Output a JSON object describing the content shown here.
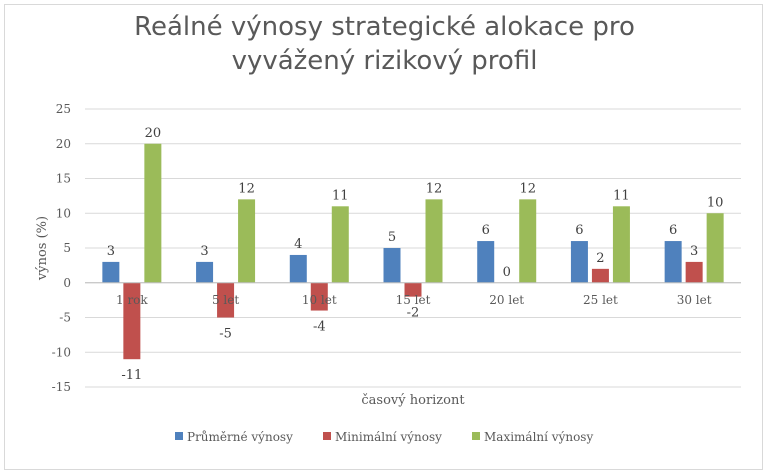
{
  "chart_data": {
    "type": "bar",
    "title_lines": [
      "Reálné výnosy strategické alokace pro",
      "vyvážený rizikový profil"
    ],
    "xlabel": "časový horizont",
    "ylabel": "výnos (%)",
    "ylim": [
      -15,
      25
    ],
    "yticks": [
      -15,
      -10,
      -5,
      0,
      5,
      10,
      15,
      20,
      25
    ],
    "grid": true,
    "legend_position": "bottom",
    "categories": [
      "1 rok",
      "5 let",
      "10 let",
      "15 let",
      "20 let",
      "25 let",
      "30 let"
    ],
    "series": [
      {
        "name": "Průměrné výnosy",
        "color": "#4f81bd",
        "values": [
          3,
          3,
          4,
          5,
          6,
          6,
          6
        ]
      },
      {
        "name": "Minimální výnosy",
        "color": "#c0504d",
        "values": [
          -11,
          -5,
          -4,
          -2,
          0,
          2,
          3
        ]
      },
      {
        "name": "Maximální výnosy",
        "color": "#9bbb59",
        "values": [
          20,
          12,
          11,
          12,
          12,
          11,
          10
        ]
      }
    ]
  }
}
